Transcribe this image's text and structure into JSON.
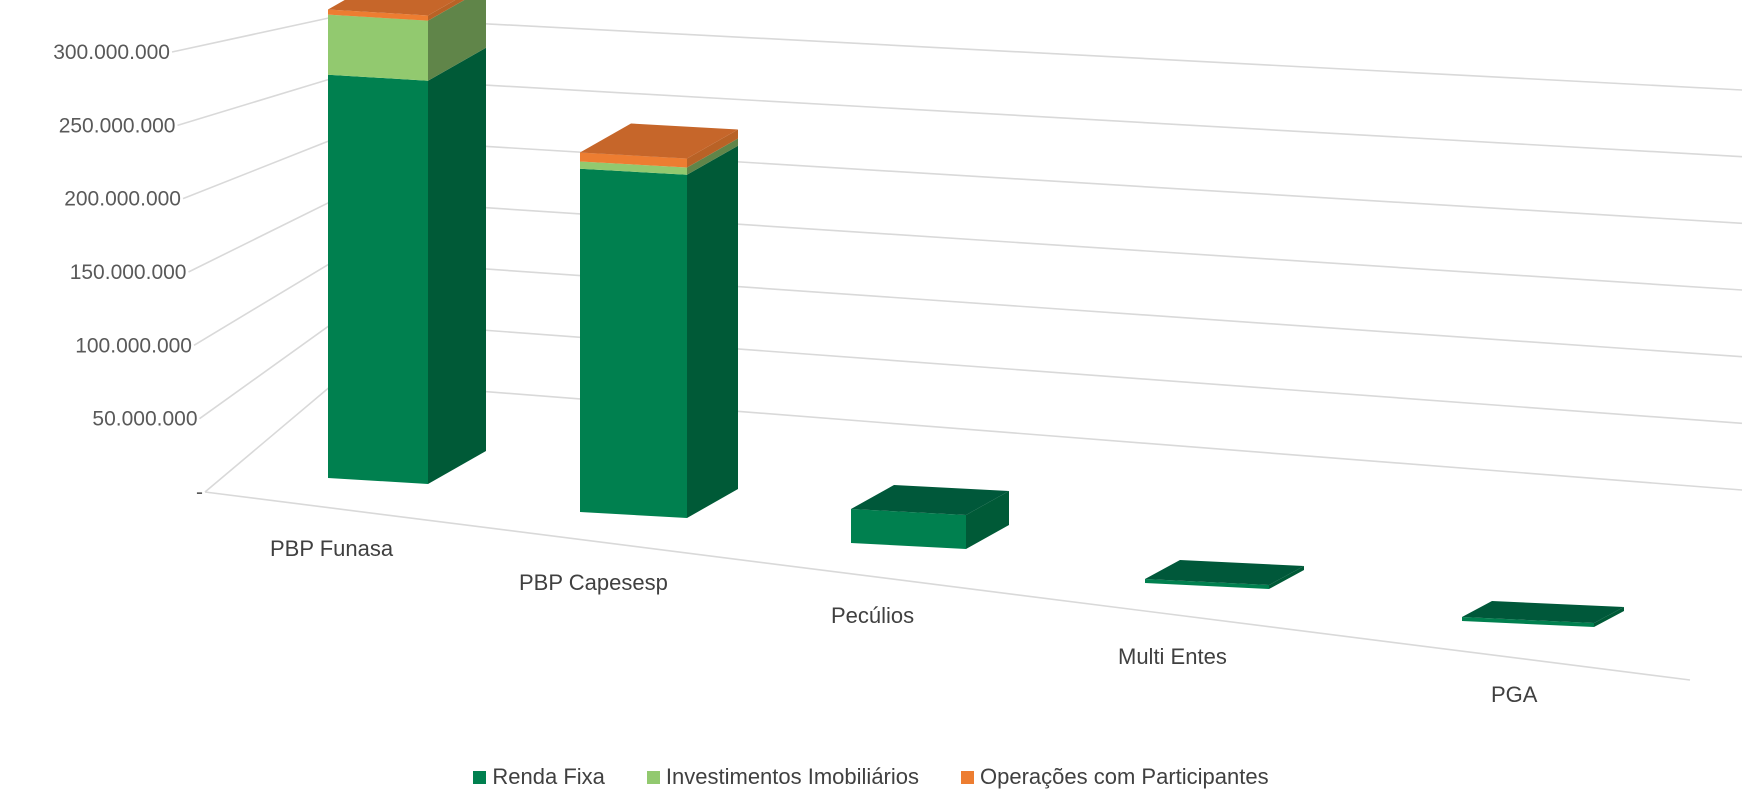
{
  "chart_data": {
    "type": "bar",
    "subtype": "stacked-3d-column",
    "title": "",
    "xlabel": "",
    "ylabel": "",
    "ylim": [
      0,
      300000000
    ],
    "yticks": [
      "-",
      "50.000.000",
      "100.000.000",
      "150.000.000",
      "200.000.000",
      "250.000.000",
      "300.000.000"
    ],
    "categories": [
      "PBP Funasa",
      "PBP Capesesp",
      "Pecúlios",
      "Multi Entes",
      "PGA"
    ],
    "series": [
      {
        "name": "Renda Fixa",
        "color": "#00804f",
        "values": [
          235000000,
          190000000,
          5000000,
          0,
          0
        ]
      },
      {
        "name": "Investimentos Imobiliários",
        "color": "#92c96f",
        "values": [
          35000000,
          4000000,
          0,
          0,
          0
        ]
      },
      {
        "name": "Operações com Participantes",
        "color": "#ed7d31",
        "values": [
          3000000,
          5000000,
          0,
          0,
          0
        ]
      }
    ],
    "legend_position": "bottom",
    "grid": true
  }
}
